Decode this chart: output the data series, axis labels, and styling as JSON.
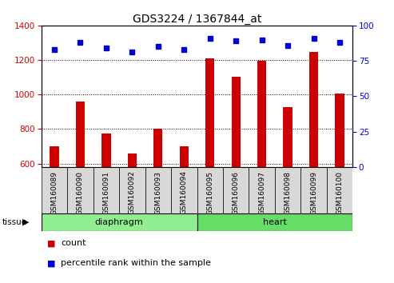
{
  "title": "GDS3224 / 1367844_at",
  "samples": [
    "GSM160089",
    "GSM160090",
    "GSM160091",
    "GSM160092",
    "GSM160093",
    "GSM160094",
    "GSM160095",
    "GSM160096",
    "GSM160097",
    "GSM160098",
    "GSM160099",
    "GSM160100"
  ],
  "counts": [
    700,
    960,
    775,
    660,
    800,
    700,
    1210,
    1105,
    1195,
    925,
    1245,
    1005
  ],
  "percentiles": [
    83,
    88,
    84,
    81,
    85,
    83,
    91,
    89,
    90,
    86,
    91,
    88
  ],
  "tissue_groups": [
    {
      "label": "diaphragm",
      "start": 0,
      "end": 6,
      "color": "#90EE90"
    },
    {
      "label": "heart",
      "start": 6,
      "end": 12,
      "color": "#66DD66"
    }
  ],
  "ylim_left": [
    580,
    1400
  ],
  "ylim_right": [
    0,
    100
  ],
  "yticks_left": [
    600,
    800,
    1000,
    1200,
    1400
  ],
  "yticks_right": [
    0,
    25,
    50,
    75,
    100
  ],
  "bar_color": "#CC0000",
  "dot_color": "#0000CC",
  "bar_bottom": 580,
  "legend_count_label": "count",
  "legend_pct_label": "percentile rank within the sample",
  "tissue_label": "tissue",
  "left_ytick_color": "#CC0000",
  "right_ytick_color": "#0000CC",
  "plot_bg": "#ffffff",
  "cell_bg": "#d8d8d8"
}
